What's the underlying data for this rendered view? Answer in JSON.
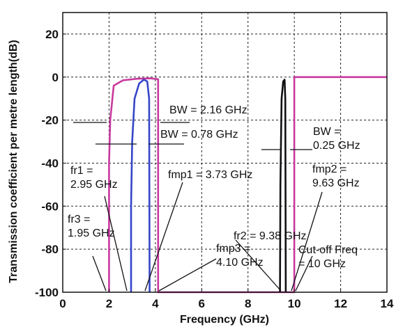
{
  "chart_data": {
    "type": "line",
    "title": "",
    "xlabel": "Frequency (GHz)",
    "ylabel": "Transmission coefficient per metre length(dB)",
    "xlim": [
      0,
      14
    ],
    "ylim": [
      -100,
      30
    ],
    "xticks": [
      0,
      2,
      4,
      6,
      8,
      10,
      12,
      14
    ],
    "yticks": [
      20,
      0,
      -20,
      -40,
      -60,
      -80,
      -100
    ],
    "grid": true,
    "legend": "none",
    "series": [
      {
        "color": "#c8399e",
        "points": [
          [
            2.0,
            -100
          ],
          [
            2.0,
            -40
          ],
          [
            2.05,
            -20
          ],
          [
            2.2,
            -4
          ],
          [
            2.6,
            -1.5
          ],
          [
            3.2,
            -0.8
          ],
          [
            3.8,
            -0.6
          ],
          [
            4.12,
            -1
          ],
          [
            4.12,
            -100
          ],
          [
            9.9,
            -100
          ],
          [
            10.0,
            -100
          ],
          [
            10.0,
            0
          ],
          [
            14,
            0
          ]
        ]
      },
      {
        "color": "#3545c8",
        "points": [
          [
            2.95,
            -100
          ],
          [
            2.95,
            -60
          ],
          [
            3.0,
            -30
          ],
          [
            3.1,
            -10
          ],
          [
            3.3,
            -3
          ],
          [
            3.5,
            -1.2
          ],
          [
            3.65,
            -2
          ],
          [
            3.73,
            -10
          ],
          [
            3.75,
            -100
          ]
        ]
      },
      {
        "color": "#111111",
        "points": [
          [
            9.38,
            -100
          ],
          [
            9.4,
            -50
          ],
          [
            9.45,
            -10
          ],
          [
            9.52,
            -2
          ],
          [
            9.58,
            -1.2
          ],
          [
            9.61,
            -10
          ],
          [
            9.63,
            -100
          ]
        ]
      }
    ],
    "annotations": [
      {
        "lines": [
          "BW = 2.16 GHz"
        ]
      },
      {
        "lines": [
          "BW = 0.78 GHz"
        ]
      },
      {
        "lines": [
          "BW =",
          "0.25 GHz"
        ]
      },
      {
        "lines": [
          "fr1 =",
          "2.95 GHz"
        ]
      },
      {
        "lines": [
          "fmp1 = 3.73 GHz"
        ]
      },
      {
        "lines": [
          "fmp2 =",
          "9.63 GHz"
        ]
      },
      {
        "lines": [
          "fr3 =",
          "1.95 GHz"
        ]
      },
      {
        "lines": [
          "fr2 = 9.38 GHz"
        ]
      },
      {
        "lines": [
          "fmp3 =",
          "4.10 GHz"
        ]
      },
      {
        "lines": [
          "Cut-off Freq",
          "= 10 GHz"
        ]
      }
    ]
  }
}
